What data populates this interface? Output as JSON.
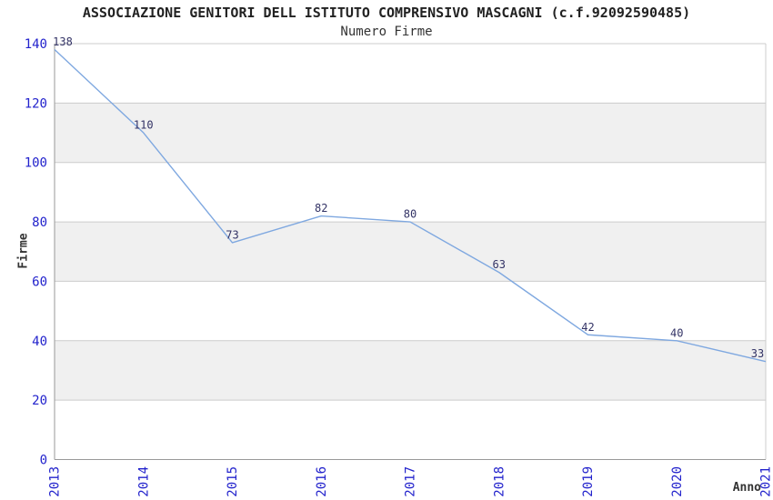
{
  "chart_data": {
    "type": "line",
    "title": "ASSOCIAZIONE GENITORI DELL ISTITUTO COMPRENSIVO MASCAGNI (c.f.92092590485)",
    "subtitle": "Numero Firme",
    "xlabel": "Anno",
    "ylabel": "Firme",
    "categories": [
      "2013",
      "2014",
      "2015",
      "2016",
      "2017",
      "2018",
      "2019",
      "2020",
      "2021"
    ],
    "series": [
      {
        "name": "Numero Firme",
        "values": [
          138,
          110,
          73,
          82,
          80,
          63,
          42,
          40,
          33
        ]
      }
    ],
    "ylim": [
      0,
      140
    ],
    "ytick_step": 20,
    "grid": true,
    "band_pattern": "alternating horizontal gray bands (20-40, 60-80, 100-120)",
    "legend_position": "none",
    "data_labels_shown": true,
    "x_tick_rotation_deg": 90,
    "colors": {
      "line": "#7fa8e0",
      "tick_label": "#2222cc",
      "data_label": "#333366",
      "band_fill": "#f0f0f0",
      "gridline": "#cccccc",
      "axis_line": "#999999",
      "title_text": "#222222",
      "background": "#ffffff"
    }
  }
}
